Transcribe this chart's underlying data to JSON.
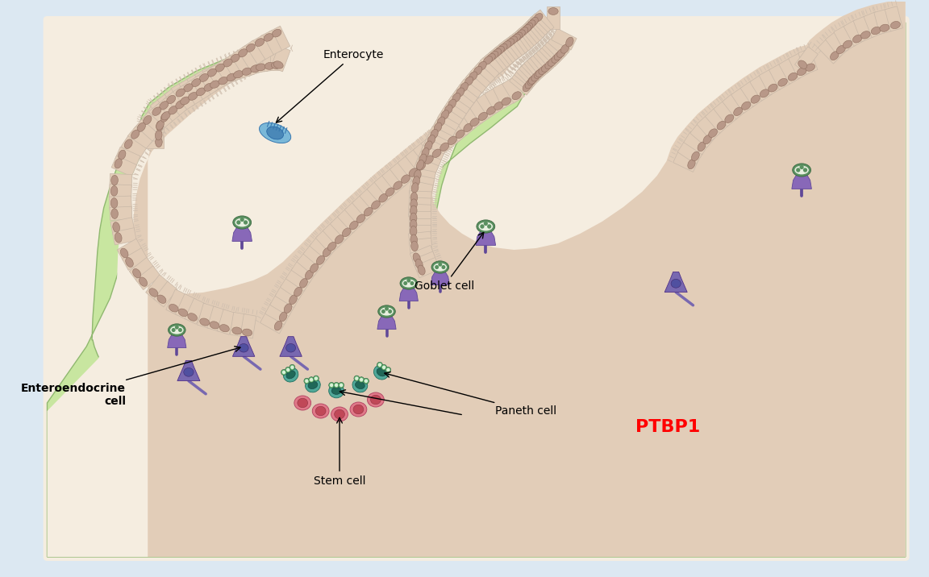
{
  "bg_color": "#dce8f2",
  "panel_bg": "#f5ede0",
  "green_outer": "#c8e6a0",
  "beige_inner": "#e2cdb8",
  "cell_wall": "#c8b8a8",
  "nucleus_color": "#b89888",
  "brush_color": "#d0c0b0",
  "enterocyte_body": "#7ab8d8",
  "enterocyte_nucleus": "#4a88b8",
  "goblet_body": "#8868b8",
  "goblet_granule": "#5a9060",
  "goblet_granule_inner": "#e8f0e0",
  "entero_body": "#7868b0",
  "entero_nucleus": "#5050a0",
  "paneth_body": "#50a898",
  "paneth_nucleus": "#206858",
  "paneth_granule": "#6ab870",
  "stem_body": "#e07888",
  "stem_nucleus": "#c04858",
  "label_enterocyte": "Enterocyte",
  "label_goblet": "Goblet cell",
  "label_entero": "Enteroendocrine\ncell",
  "label_paneth": "Paneth cell",
  "label_stem": "Stem cell",
  "label_ptbp1": "PTBP1"
}
